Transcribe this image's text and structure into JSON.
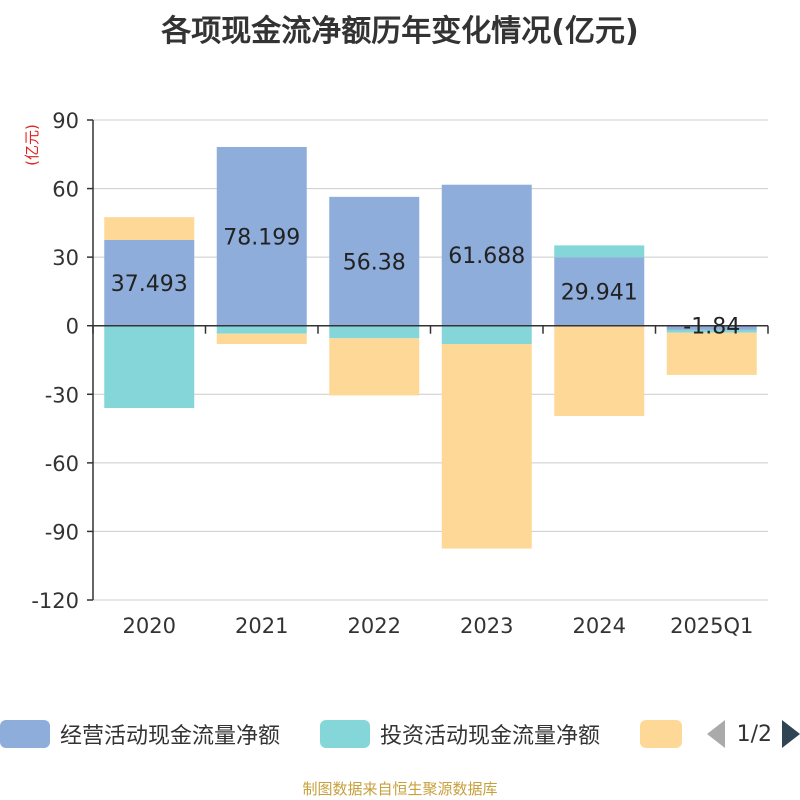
{
  "chart_data": {
    "type": "bar",
    "stacked": true,
    "title": "各项现金流净额历年变化情况(亿元)",
    "ylabel": "(亿元)",
    "xlabel": "",
    "categories": [
      "2020",
      "2021",
      "2022",
      "2023",
      "2024",
      "2025Q1"
    ],
    "ylim": [
      -120,
      90
    ],
    "yticks": [
      90,
      60,
      30,
      0,
      -30,
      -60,
      -90,
      -120
    ],
    "ytick_labels": [
      "90",
      "60",
      "30",
      "0",
      "-30",
      "-60",
      "-90",
      "-120"
    ],
    "grid": true,
    "series": [
      {
        "name": "经营活动现金流量净额",
        "color": "#8eaddb",
        "values": [
          37.493,
          78.199,
          56.38,
          61.688,
          29.941,
          -1.84
        ]
      },
      {
        "name": "投资活动现金流量净额",
        "color": "#85d6d8",
        "values": [
          -36.0,
          -3.5,
          -5.5,
          -8.0,
          5.2,
          -1.2
        ]
      },
      {
        "name": "",
        "color": "#fed897",
        "values": [
          10.0,
          -4.5,
          -25.0,
          -89.5,
          -39.5,
          -18.5
        ]
      }
    ],
    "data_labels": [
      "37.493",
      "78.199",
      "56.38",
      "61.688",
      "29.941",
      "-1.84"
    ],
    "legend_position": "bottom"
  },
  "legend": {
    "items": [
      {
        "label": "经营活动现金流量净额",
        "color": "#8eaddb"
      },
      {
        "label": "投资活动现金流量净额",
        "color": "#85d6d8"
      },
      {
        "label": "",
        "color": "#fed897"
      }
    ],
    "pager_text": "1/2"
  },
  "footer": "制图数据来自恒生聚源数据库"
}
